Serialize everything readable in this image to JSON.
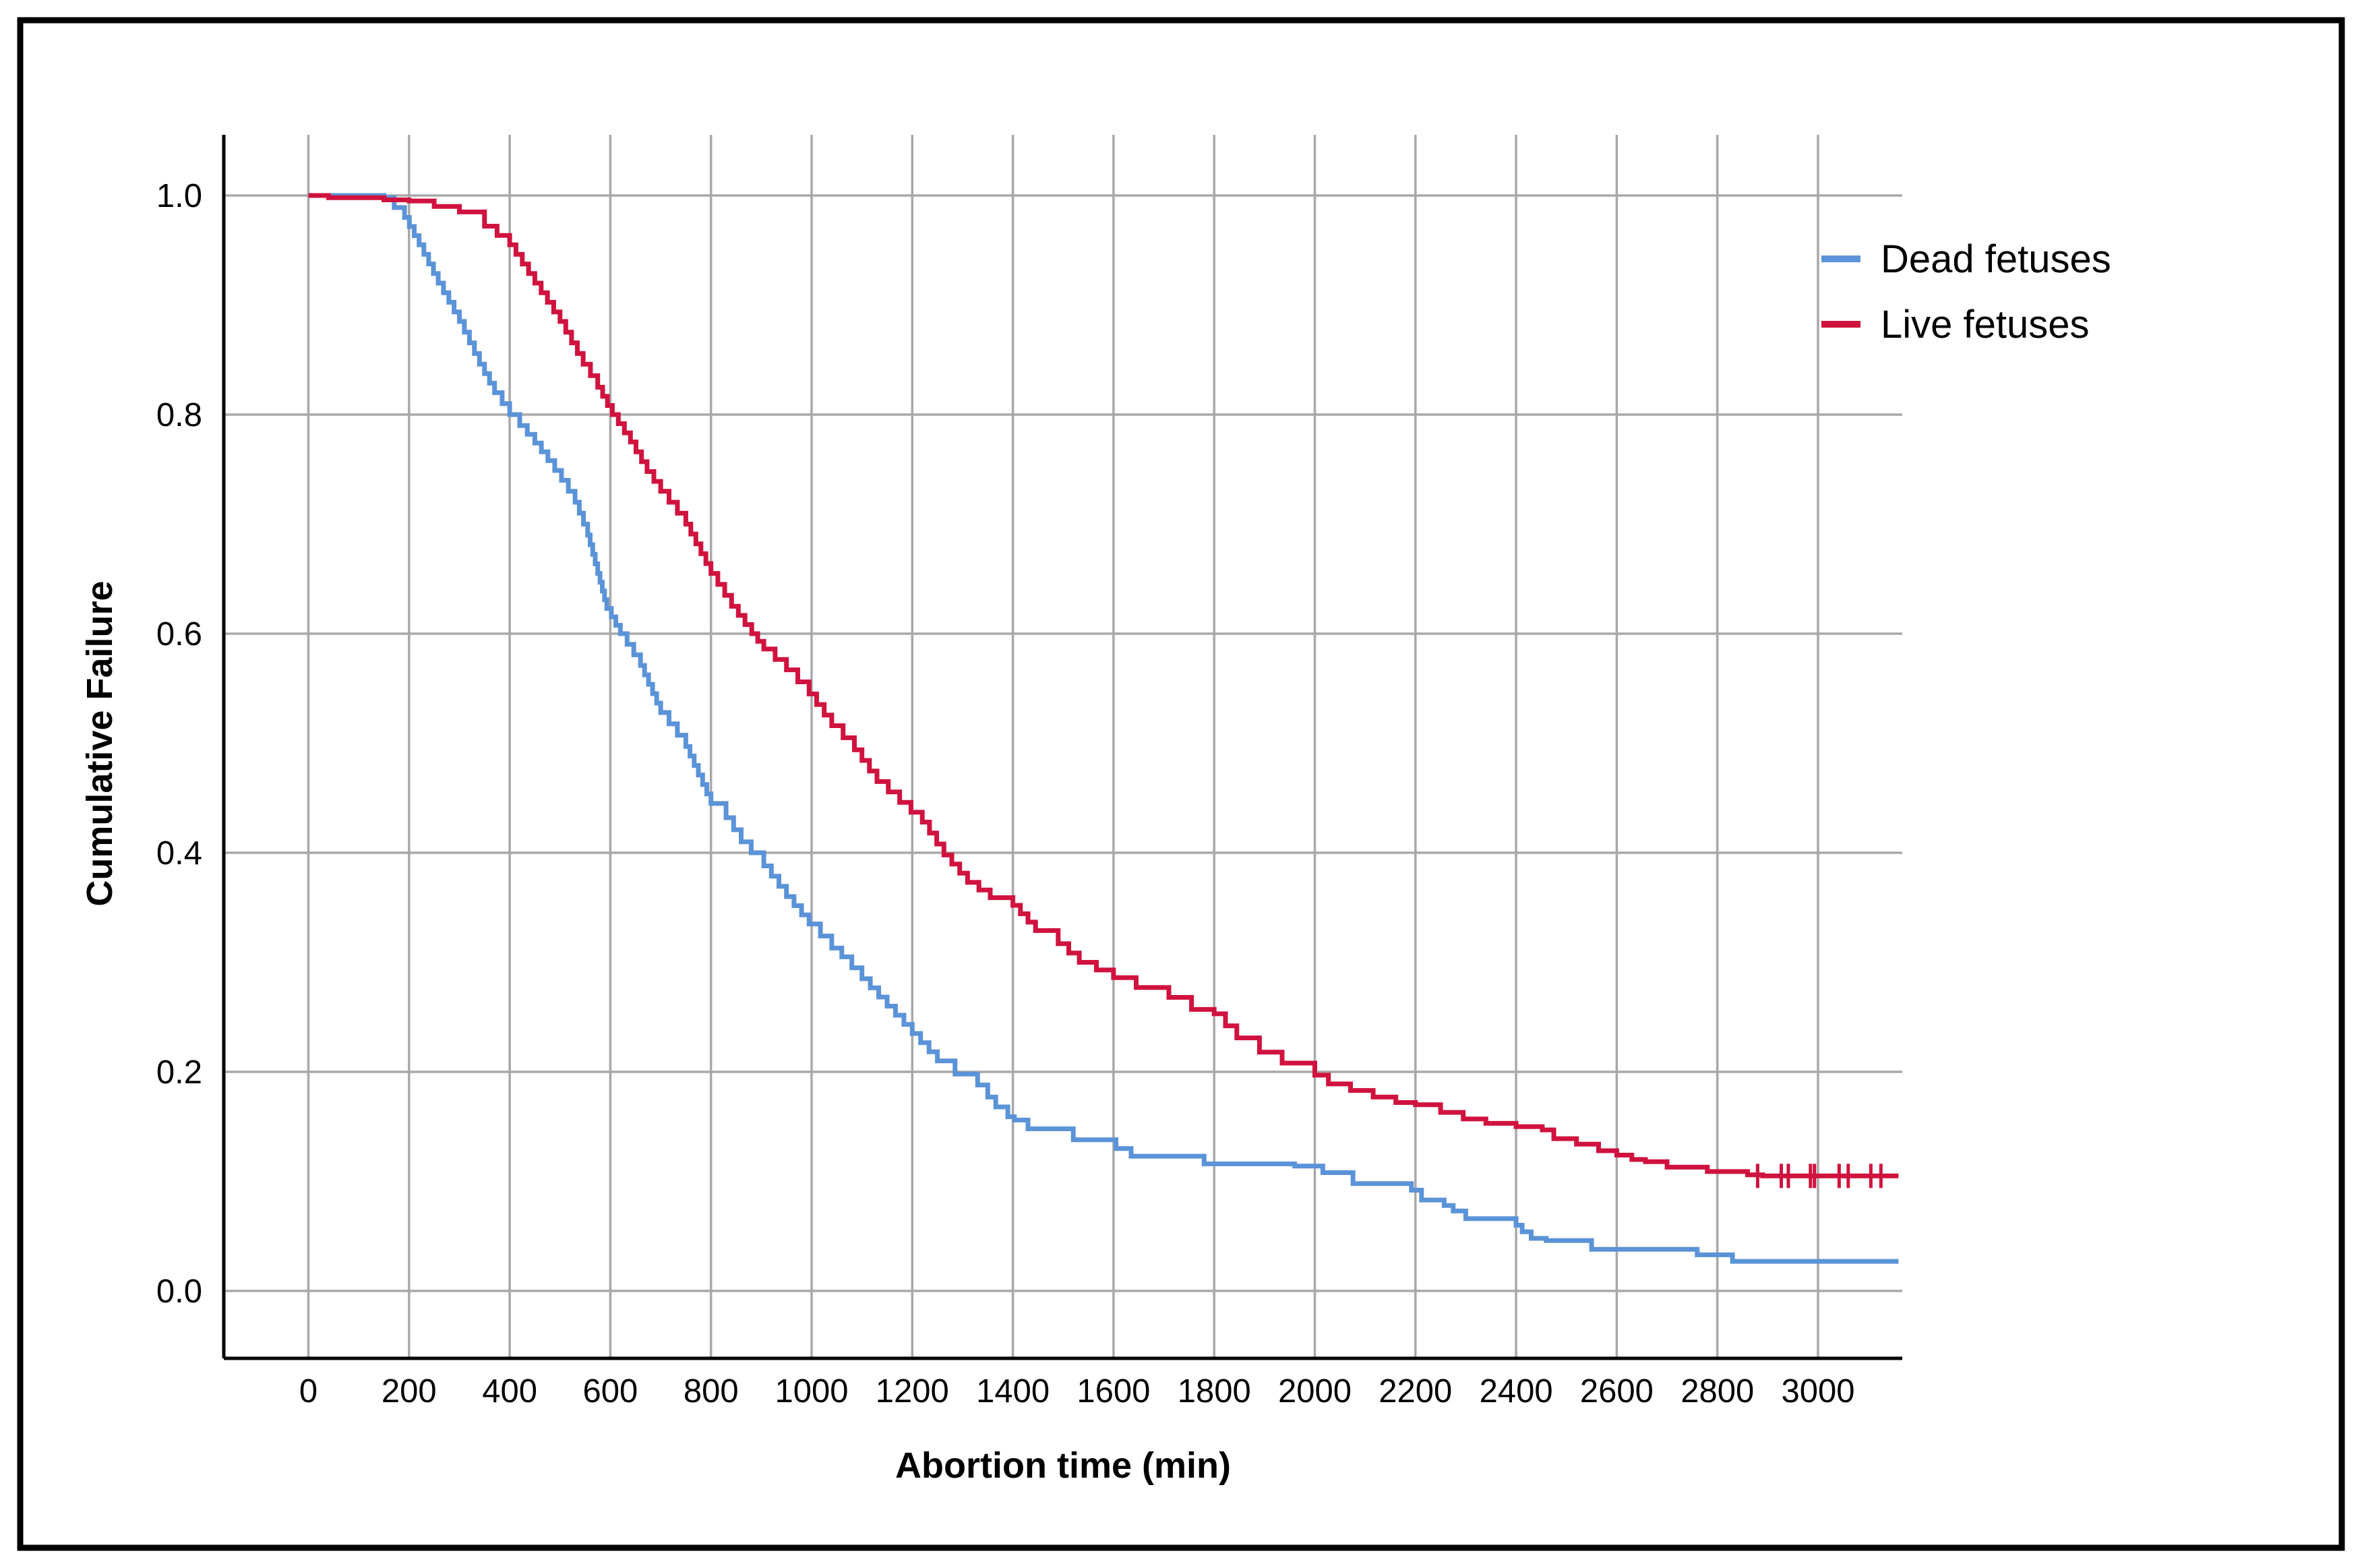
{
  "figure": {
    "background": "#ffffff",
    "border_color": "#000000",
    "gridline_color": "#a8a8a8",
    "axis_color": "#000000"
  },
  "legend": {
    "items": [
      {
        "label": "Dead fetuses",
        "color": "#5b93d8"
      },
      {
        "label": "Live fetuses",
        "color": "#d0123e"
      }
    ]
  },
  "chart_data": {
    "type": "line",
    "subtype": "step-survival-cumulative-failure",
    "title": "",
    "xlabel": "Abortion time (min)",
    "ylabel": "Cumulative Failure",
    "xlim": [
      -170,
      3170
    ],
    "ylim": [
      -0.062,
      1.056
    ],
    "grid": true,
    "legend_position": "top-right",
    "x_ticks": [
      0,
      200,
      400,
      600,
      800,
      1000,
      1200,
      1400,
      1600,
      1800,
      2000,
      2200,
      2400,
      2600,
      2800,
      3000
    ],
    "y_ticks": [
      "0.0",
      "0.2",
      "0.4",
      "0.6",
      "0.8",
      "1.0"
    ],
    "series": [
      {
        "name": "Dead fetuses",
        "color": "#5b93d8",
        "points": [
          [
            0,
            1.0
          ],
          [
            130,
            1.0
          ],
          [
            150,
            0.998
          ],
          [
            191,
            0.98
          ],
          [
            220,
            0.955
          ],
          [
            258,
            0.92
          ],
          [
            300,
            0.885
          ],
          [
            340,
            0.846
          ],
          [
            370,
            0.82
          ],
          [
            400,
            0.8
          ],
          [
            420,
            0.79
          ],
          [
            450,
            0.774
          ],
          [
            476,
            0.758
          ],
          [
            503,
            0.74
          ],
          [
            530,
            0.72
          ],
          [
            555,
            0.69
          ],
          [
            575,
            0.655
          ],
          [
            593,
            0.623
          ],
          [
            620,
            0.6
          ],
          [
            660,
            0.571
          ],
          [
            700,
            0.528
          ],
          [
            750,
            0.497
          ],
          [
            800,
            0.445
          ],
          [
            830,
            0.432
          ],
          [
            860,
            0.41
          ],
          [
            880,
            0.4
          ],
          [
            905,
            0.388
          ],
          [
            950,
            0.36
          ],
          [
            995,
            0.335
          ],
          [
            1040,
            0.313
          ],
          [
            1060,
            0.305
          ],
          [
            1100,
            0.285
          ],
          [
            1150,
            0.26
          ],
          [
            1200,
            0.235
          ],
          [
            1250,
            0.21
          ],
          [
            1285,
            0.198
          ],
          [
            1330,
            0.188
          ],
          [
            1350,
            0.177
          ],
          [
            1366,
            0.168
          ],
          [
            1390,
            0.159
          ],
          [
            1403,
            0.156
          ],
          [
            1430,
            0.148
          ],
          [
            1520,
            0.138
          ],
          [
            1605,
            0.13
          ],
          [
            1635,
            0.123
          ],
          [
            1780,
            0.116
          ],
          [
            1960,
            0.114
          ],
          [
            2016,
            0.108
          ],
          [
            2076,
            0.098
          ],
          [
            2192,
            0.092
          ],
          [
            2212,
            0.083
          ],
          [
            2257,
            0.078
          ],
          [
            2275,
            0.073
          ],
          [
            2300,
            0.066
          ],
          [
            2400,
            0.06
          ],
          [
            2412,
            0.054
          ],
          [
            2430,
            0.048
          ],
          [
            2460,
            0.046
          ],
          [
            2550,
            0.038
          ],
          [
            2760,
            0.033
          ],
          [
            2830,
            0.027
          ],
          [
            3160,
            0.027
          ]
        ],
        "censor_marks": {
          "times": [],
          "value": null
        }
      },
      {
        "name": "Live fetuses",
        "color": "#d0123e",
        "points": [
          [
            0,
            1.0
          ],
          [
            40,
            0.998
          ],
          [
            150,
            0.996
          ],
          [
            200,
            0.995
          ],
          [
            250,
            0.99
          ],
          [
            300,
            0.985
          ],
          [
            350,
            0.972
          ],
          [
            400,
            0.955
          ],
          [
            450,
            0.92
          ],
          [
            500,
            0.885
          ],
          [
            546,
            0.846
          ],
          [
            575,
            0.825
          ],
          [
            604,
            0.8
          ],
          [
            640,
            0.775
          ],
          [
            673,
            0.748
          ],
          [
            700,
            0.73
          ],
          [
            750,
            0.7
          ],
          [
            800,
            0.655
          ],
          [
            841,
            0.625
          ],
          [
            881,
            0.6
          ],
          [
            905,
            0.586
          ],
          [
            950,
            0.567
          ],
          [
            995,
            0.545
          ],
          [
            1040,
            0.516
          ],
          [
            1085,
            0.494
          ],
          [
            1130,
            0.465
          ],
          [
            1175,
            0.446
          ],
          [
            1220,
            0.428
          ],
          [
            1263,
            0.398
          ],
          [
            1310,
            0.373
          ],
          [
            1355,
            0.359
          ],
          [
            1400,
            0.352
          ],
          [
            1445,
            0.329
          ],
          [
            1490,
            0.317
          ],
          [
            1532,
            0.3
          ],
          [
            1600,
            0.286
          ],
          [
            1645,
            0.277
          ],
          [
            1710,
            0.268
          ],
          [
            1755,
            0.257
          ],
          [
            1800,
            0.253
          ],
          [
            1845,
            0.231
          ],
          [
            1890,
            0.218
          ],
          [
            1935,
            0.208
          ],
          [
            2000,
            0.197
          ],
          [
            2027,
            0.189
          ],
          [
            2071,
            0.183
          ],
          [
            2116,
            0.177
          ],
          [
            2161,
            0.172
          ],
          [
            2200,
            0.17
          ],
          [
            2250,
            0.163
          ],
          [
            2295,
            0.157
          ],
          [
            2340,
            0.153
          ],
          [
            2400,
            0.15
          ],
          [
            2452,
            0.147
          ],
          [
            2475,
            0.139
          ],
          [
            2520,
            0.134
          ],
          [
            2564,
            0.128
          ],
          [
            2600,
            0.124
          ],
          [
            2630,
            0.12
          ],
          [
            2657,
            0.118
          ],
          [
            2700,
            0.113
          ],
          [
            2780,
            0.109
          ],
          [
            2860,
            0.106
          ],
          [
            2890,
            0.105
          ],
          [
            3160,
            0.105
          ]
        ],
        "censor_marks": {
          "times": [
            2880,
            2927,
            2941,
            2985,
            2993,
            3042,
            3060,
            3105,
            3125
          ],
          "value": 0.105
        }
      }
    ]
  }
}
